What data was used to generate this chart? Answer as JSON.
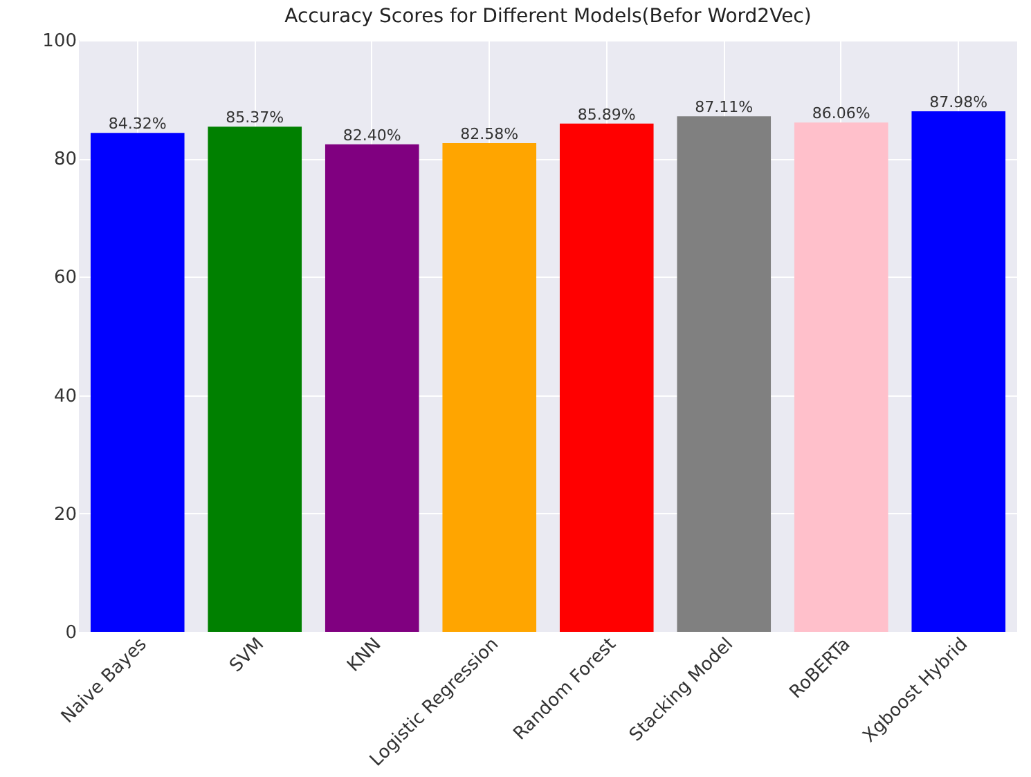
{
  "chart_data": {
    "type": "bar",
    "title": "Accuracy Scores for Different Models(Befor Word2Vec)",
    "categories": [
      "Naive Bayes",
      "SVM",
      "KNN",
      "Logistic Regression",
      "Random Forest",
      "Stacking Model",
      "RoBERTa",
      "Xgboost Hybrid"
    ],
    "values": [
      84.32,
      85.37,
      82.4,
      82.58,
      85.89,
      87.11,
      86.06,
      87.98
    ],
    "colors": [
      "#0000ff",
      "#008000",
      "#800080",
      "#ffa500",
      "#ff0000",
      "#808080",
      "#ffc0cb",
      "#0000ff"
    ],
    "value_labels": [
      "84.32%",
      "85.37%",
      "82.40%",
      "82.58%",
      "85.89%",
      "87.11%",
      "86.06%",
      "87.98%"
    ],
    "ylim": [
      0,
      100
    ],
    "yticks": [
      0,
      20,
      40,
      60,
      80,
      100
    ],
    "grid": true
  }
}
